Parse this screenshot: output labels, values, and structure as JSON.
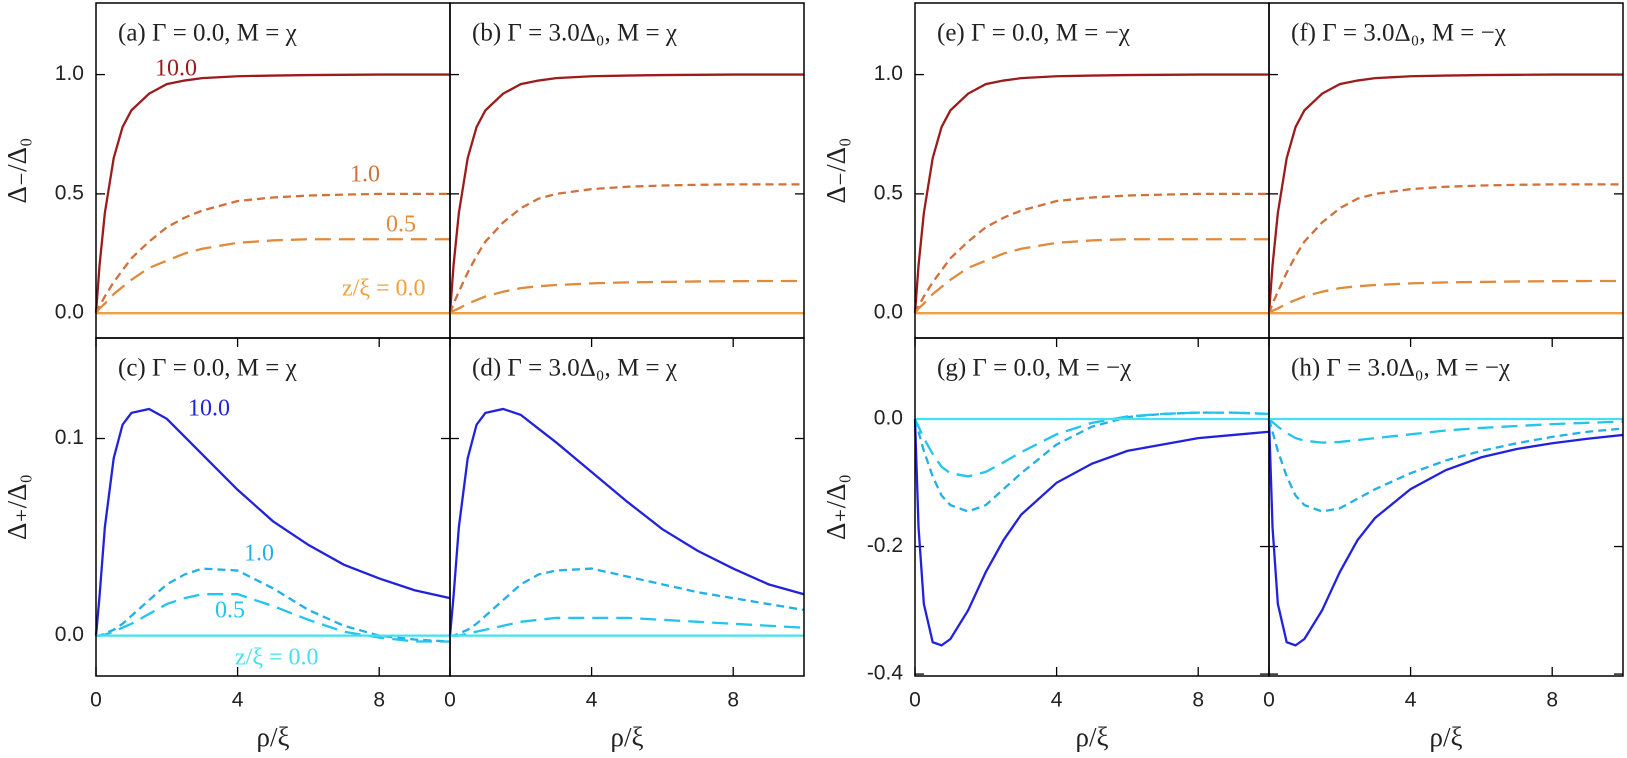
{
  "chart_data": [
    {
      "type": "line",
      "title": "(a) Γ = 0.0, M = χ",
      "ylabel": "Δ₋/Δ₀",
      "xlim": [
        0,
        10
      ],
      "ylim": [
        -0.104,
        1.3
      ],
      "yticks": [
        {
          "value": 0,
          "label": "0.0"
        },
        {
          "value": 0.5,
          "label": "0.5"
        },
        {
          "value": 1,
          "label": "1.0"
        }
      ],
      "x": [
        0,
        0.1,
        0.25,
        0.5,
        0.75,
        1,
        1.5,
        2,
        2.5,
        3,
        4,
        5,
        6,
        7,
        8,
        9,
        10
      ],
      "series": [
        {
          "name": "10.0",
          "color": "#9b1c1c",
          "dash": "solid",
          "values": [
            0,
            0.2,
            0.42,
            0.65,
            0.78,
            0.85,
            0.92,
            0.96,
            0.975,
            0.985,
            0.993,
            0.996,
            0.998,
            0.999,
            1,
            1,
            1
          ]
        },
        {
          "name": "1.0",
          "color": "#d2703a",
          "dash": "short",
          "values": [
            0,
            0.03,
            0.07,
            0.13,
            0.18,
            0.23,
            0.3,
            0.36,
            0.4,
            0.43,
            0.47,
            0.485,
            0.493,
            0.497,
            0.5,
            0.5,
            0.5
          ]
        },
        {
          "name": "0.5",
          "color": "#e08a3c",
          "dash": "long",
          "values": [
            0,
            0.02,
            0.04,
            0.08,
            0.11,
            0.14,
            0.19,
            0.22,
            0.25,
            0.27,
            0.295,
            0.305,
            0.31,
            0.31,
            0.31,
            0.31,
            0.31
          ]
        },
        {
          "name": "z/ξ = 0.0",
          "color": "#f0a040",
          "dash": "solid",
          "values": [
            0,
            0,
            0,
            0,
            0,
            0,
            0,
            0,
            0,
            0,
            0,
            0,
            0,
            0,
            0,
            0,
            0
          ]
        }
      ]
    },
    {
      "type": "line",
      "title": "(b) Γ = 3.0Δ₀, M = χ",
      "xlim": [
        0,
        10
      ],
      "ylim": [
        -0.104,
        1.3
      ],
      "x": [
        0,
        0.1,
        0.25,
        0.5,
        0.75,
        1,
        1.5,
        2,
        2.5,
        3,
        4,
        5,
        6,
        7,
        8,
        9,
        10
      ],
      "series": [
        {
          "color": "#9b1c1c",
          "dash": "solid",
          "values": [
            0,
            0.2,
            0.42,
            0.65,
            0.78,
            0.85,
            0.92,
            0.96,
            0.975,
            0.985,
            0.993,
            0.996,
            0.998,
            0.999,
            1,
            1,
            1
          ]
        },
        {
          "color": "#d2703a",
          "dash": "short",
          "values": [
            0,
            0.04,
            0.09,
            0.17,
            0.24,
            0.3,
            0.38,
            0.44,
            0.48,
            0.5,
            0.52,
            0.53,
            0.535,
            0.538,
            0.54,
            0.54,
            0.54
          ]
        },
        {
          "color": "#e08a3c",
          "dash": "long",
          "values": [
            0,
            0.01,
            0.02,
            0.04,
            0.055,
            0.07,
            0.09,
            0.105,
            0.113,
            0.118,
            0.125,
            0.129,
            0.131,
            0.133,
            0.134,
            0.135,
            0.135
          ]
        },
        {
          "color": "#f0a040",
          "dash": "solid",
          "values": [
            0,
            0,
            0,
            0,
            0,
            0,
            0,
            0,
            0,
            0,
            0,
            0,
            0,
            0,
            0,
            0,
            0
          ]
        }
      ]
    },
    {
      "type": "line",
      "title": "(c) Γ = 0.0, M = χ",
      "ylabel": "Δ₊/Δ₀",
      "xlabel": "ρ/ξ",
      "xlim": [
        0,
        10
      ],
      "ylim": [
        -0.0205,
        0.151
      ],
      "yticks": [
        {
          "value": 0,
          "label": "0.0"
        },
        {
          "value": 0.1,
          "label": "0.1"
        }
      ],
      "xticks": [
        0,
        4,
        8
      ],
      "x": [
        0,
        0.1,
        0.25,
        0.5,
        0.75,
        1,
        1.5,
        2,
        2.5,
        3,
        4,
        5,
        6,
        7,
        8,
        9,
        10
      ],
      "series": [
        {
          "name": "10.0",
          "color": "#2222dd",
          "dash": "solid",
          "values": [
            0,
            0.02,
            0.055,
            0.09,
            0.107,
            0.113,
            0.115,
            0.11,
            0.101,
            0.092,
            0.074,
            0.058,
            0.046,
            0.036,
            0.029,
            0.023,
            0.019
          ]
        },
        {
          "name": "1.0",
          "color": "#22b0e8",
          "dash": "short",
          "values": [
            0,
            0,
            0.001,
            0.003,
            0.006,
            0.01,
            0.018,
            0.026,
            0.031,
            0.034,
            0.033,
            0.024,
            0.013,
            0.005,
            0,
            -0.002,
            -0.003
          ]
        },
        {
          "name": "0.5",
          "color": "#22c4f0",
          "dash": "long",
          "values": [
            0,
            0,
            0.0005,
            0.002,
            0.004,
            0.006,
            0.011,
            0.016,
            0.019,
            0.021,
            0.021,
            0.015,
            0.008,
            0.002,
            -0.001,
            -0.003,
            -0.003
          ]
        },
        {
          "name": "z/ξ = 0.0",
          "color": "#44e0f0",
          "dash": "solid",
          "values": [
            0,
            0,
            0,
            0,
            0,
            0,
            0,
            0,
            0,
            0,
            0,
            0,
            0,
            0,
            0,
            0,
            0
          ]
        }
      ]
    },
    {
      "type": "line",
      "title": "(d) Γ = 3.0Δ₀, M = χ",
      "xlabel": "ρ/ξ",
      "xlim": [
        0,
        10
      ],
      "ylim": [
        -0.0205,
        0.151
      ],
      "xticks": [
        0,
        4,
        8
      ],
      "x": [
        0,
        0.1,
        0.25,
        0.5,
        0.75,
        1,
        1.5,
        2,
        2.5,
        3,
        4,
        5,
        6,
        7,
        8,
        9,
        10
      ],
      "series": [
        {
          "color": "#2222dd",
          "dash": "solid",
          "values": [
            0,
            0.02,
            0.055,
            0.09,
            0.107,
            0.113,
            0.115,
            0.112,
            0.105,
            0.098,
            0.083,
            0.068,
            0.054,
            0.043,
            0.034,
            0.026,
            0.021
          ]
        },
        {
          "color": "#22b0e8",
          "dash": "short",
          "values": [
            0,
            0,
            0.001,
            0.003,
            0.006,
            0.01,
            0.018,
            0.026,
            0.031,
            0.033,
            0.034,
            0.03,
            0.026,
            0.022,
            0.019,
            0.016,
            0.013
          ]
        },
        {
          "color": "#22c4f0",
          "dash": "long",
          "values": [
            0,
            0,
            0,
            0.001,
            0.002,
            0.003,
            0.005,
            0.007,
            0.008,
            0.009,
            0.009,
            0.009,
            0.008,
            0.007,
            0.006,
            0.005,
            0.004
          ]
        },
        {
          "color": "#44e0f0",
          "dash": "solid",
          "values": [
            0,
            0,
            0,
            0,
            0,
            0,
            0,
            0,
            0,
            0,
            0,
            0,
            0,
            0,
            0,
            0,
            0
          ]
        }
      ]
    },
    {
      "type": "line",
      "title": "(e) Γ = 0.0, M = −χ",
      "ylabel": "Δ₋/Δ₀",
      "xlim": [
        0,
        10
      ],
      "ylim": [
        -0.104,
        1.3
      ],
      "yticks": [
        {
          "value": 0,
          "label": "0.0"
        },
        {
          "value": 0.5,
          "label": "0.5"
        },
        {
          "value": 1,
          "label": "1.0"
        }
      ],
      "x": [
        0,
        0.1,
        0.25,
        0.5,
        0.75,
        1,
        1.5,
        2,
        2.5,
        3,
        4,
        5,
        6,
        7,
        8,
        9,
        10
      ],
      "series": [
        {
          "color": "#9b1c1c",
          "dash": "solid",
          "values": [
            0,
            0.2,
            0.42,
            0.65,
            0.78,
            0.85,
            0.92,
            0.96,
            0.975,
            0.985,
            0.993,
            0.996,
            0.998,
            0.999,
            1,
            1,
            1
          ]
        },
        {
          "color": "#d2703a",
          "dash": "short",
          "values": [
            0,
            0.03,
            0.07,
            0.13,
            0.18,
            0.23,
            0.3,
            0.36,
            0.4,
            0.43,
            0.47,
            0.485,
            0.493,
            0.497,
            0.5,
            0.5,
            0.5
          ]
        },
        {
          "color": "#e08a3c",
          "dash": "long",
          "values": [
            0,
            0.02,
            0.04,
            0.08,
            0.11,
            0.14,
            0.19,
            0.22,
            0.25,
            0.27,
            0.295,
            0.305,
            0.31,
            0.31,
            0.31,
            0.31,
            0.31
          ]
        },
        {
          "color": "#f0a040",
          "dash": "solid",
          "values": [
            0,
            0,
            0,
            0,
            0,
            0,
            0,
            0,
            0,
            0,
            0,
            0,
            0,
            0,
            0,
            0,
            0
          ]
        }
      ]
    },
    {
      "type": "line",
      "title": "(f) Γ = 3.0Δ₀, M = −χ",
      "xlim": [
        0,
        10
      ],
      "ylim": [
        -0.104,
        1.3
      ],
      "x": [
        0,
        0.1,
        0.25,
        0.5,
        0.75,
        1,
        1.5,
        2,
        2.5,
        3,
        4,
        5,
        6,
        7,
        8,
        9,
        10
      ],
      "series": [
        {
          "color": "#9b1c1c",
          "dash": "solid",
          "values": [
            0,
            0.2,
            0.42,
            0.65,
            0.78,
            0.85,
            0.92,
            0.96,
            0.975,
            0.985,
            0.993,
            0.996,
            0.998,
            0.999,
            1,
            1,
            1
          ]
        },
        {
          "color": "#d2703a",
          "dash": "short",
          "values": [
            0,
            0.04,
            0.09,
            0.17,
            0.24,
            0.3,
            0.38,
            0.44,
            0.48,
            0.5,
            0.52,
            0.53,
            0.535,
            0.538,
            0.54,
            0.54,
            0.54
          ]
        },
        {
          "color": "#e08a3c",
          "dash": "long",
          "values": [
            0,
            0.01,
            0.02,
            0.04,
            0.055,
            0.07,
            0.09,
            0.105,
            0.113,
            0.118,
            0.125,
            0.129,
            0.131,
            0.133,
            0.134,
            0.135,
            0.135
          ]
        },
        {
          "color": "#f0a040",
          "dash": "solid",
          "values": [
            0,
            0,
            0,
            0,
            0,
            0,
            0,
            0,
            0,
            0,
            0,
            0,
            0,
            0,
            0,
            0,
            0
          ]
        }
      ]
    },
    {
      "type": "line",
      "title": "(g) Γ = 0.0, M = −χ",
      "ylabel": "Δ₊/Δ₀",
      "xlabel": "ρ/ξ",
      "xlim": [
        0,
        10
      ],
      "ylim": [
        -0.403,
        0.127
      ],
      "yticks": [
        {
          "value": 0,
          "label": "0.0"
        },
        {
          "value": -0.2,
          "label": "-0.2"
        },
        {
          "value": -0.4,
          "label": "-0.4"
        }
      ],
      "xticks": [
        0,
        4,
        8
      ],
      "x": [
        0,
        0.1,
        0.25,
        0.5,
        0.75,
        1,
        1.5,
        2,
        2.5,
        3,
        4,
        5,
        6,
        7,
        8,
        9,
        10
      ],
      "series": [
        {
          "color": "#2222dd",
          "dash": "solid",
          "values": [
            0,
            -0.17,
            -0.29,
            -0.35,
            -0.355,
            -0.345,
            -0.3,
            -0.24,
            -0.19,
            -0.15,
            -0.1,
            -0.07,
            -0.05,
            -0.04,
            -0.03,
            -0.025,
            -0.02
          ]
        },
        {
          "color": "#22b0e8",
          "dash": "short",
          "values": [
            0,
            -0.02,
            -0.05,
            -0.09,
            -0.12,
            -0.135,
            -0.145,
            -0.135,
            -0.11,
            -0.085,
            -0.04,
            -0.012,
            0.003,
            0.008,
            0.01,
            0.01,
            0.008
          ]
        },
        {
          "color": "#22c4f0",
          "dash": "long",
          "values": [
            0,
            -0.012,
            -0.03,
            -0.055,
            -0.075,
            -0.085,
            -0.09,
            -0.083,
            -0.068,
            -0.052,
            -0.024,
            -0.006,
            0.004,
            0.008,
            0.01,
            0.01,
            0.008
          ]
        },
        {
          "color": "#44e0f0",
          "dash": "solid",
          "values": [
            0,
            0,
            0,
            0,
            0,
            0,
            0,
            0,
            0,
            0,
            0,
            0,
            0,
            0,
            0,
            0,
            0
          ]
        }
      ]
    },
    {
      "type": "line",
      "title": "(h) Γ = 3.0Δ₀, M = −χ",
      "xlabel": "ρ/ξ",
      "xlim": [
        0,
        10
      ],
      "ylim": [
        -0.403,
        0.127
      ],
      "xticks": [
        0,
        4,
        8
      ],
      "x": [
        0,
        0.1,
        0.25,
        0.5,
        0.75,
        1,
        1.5,
        2,
        2.5,
        3,
        4,
        5,
        6,
        7,
        8,
        9,
        10
      ],
      "series": [
        {
          "color": "#2222dd",
          "dash": "solid",
          "values": [
            0,
            -0.17,
            -0.29,
            -0.35,
            -0.355,
            -0.345,
            -0.3,
            -0.24,
            -0.19,
            -0.155,
            -0.11,
            -0.08,
            -0.06,
            -0.047,
            -0.038,
            -0.031,
            -0.025
          ]
        },
        {
          "color": "#22b0e8",
          "dash": "short",
          "values": [
            0,
            -0.02,
            -0.05,
            -0.09,
            -0.12,
            -0.135,
            -0.145,
            -0.14,
            -0.125,
            -0.11,
            -0.085,
            -0.065,
            -0.05,
            -0.038,
            -0.028,
            -0.02,
            -0.015
          ]
        },
        {
          "color": "#22c4f0",
          "dash": "long",
          "values": [
            0,
            -0.005,
            -0.012,
            -0.022,
            -0.03,
            -0.034,
            -0.037,
            -0.036,
            -0.033,
            -0.03,
            -0.024,
            -0.018,
            -0.014,
            -0.011,
            -0.008,
            -0.006,
            -0.004
          ]
        },
        {
          "color": "#44e0f0",
          "dash": "solid",
          "values": [
            0,
            0,
            0,
            0,
            0,
            0,
            0,
            0,
            0,
            0,
            0,
            0,
            0,
            0,
            0,
            0,
            0
          ]
        }
      ]
    }
  ]
}
